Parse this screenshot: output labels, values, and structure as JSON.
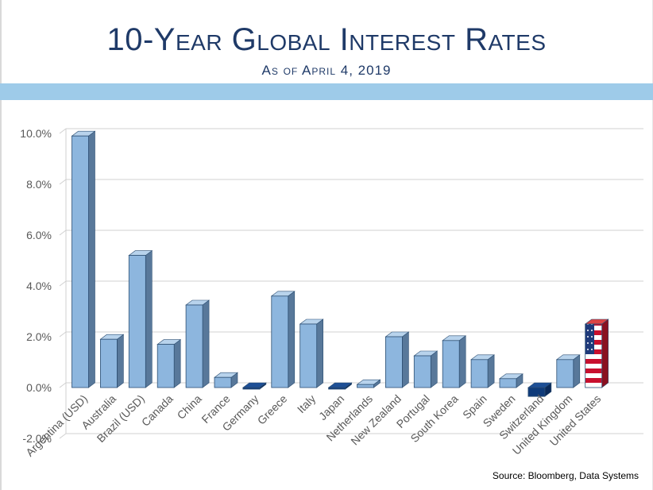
{
  "header": {
    "title": "10-Year Global Interest Rates",
    "subtitle": "As of April 4, 2019"
  },
  "source": "Source:  Bloomberg, Data Systems",
  "colors": {
    "bar_front": "#8db6de",
    "bar_side": "#58789a",
    "bar_top": "#b8d3ec",
    "bar_negative": "#0f3b7a",
    "grid": "#d0d0d0",
    "title": "#1f3a68",
    "band": "#9ecbe9"
  },
  "chart_data": {
    "type": "bar",
    "title": "10-Year Global Interest Rates",
    "subtitle": "As of April 4, 2019",
    "xlabel": "",
    "ylabel": "",
    "ylim": [
      -2,
      10
    ],
    "yticks": [
      "-2.0%",
      "0.0%",
      "2.0%",
      "4.0%",
      "6.0%",
      "8.0%",
      "10.0%"
    ],
    "grid": true,
    "categories": [
      "Argentina (USD)",
      "Australia",
      "Brazil (USD)",
      "Canada",
      "China",
      "France",
      "Germany",
      "Greece",
      "Italy",
      "Japan",
      "Netherlands",
      "New Zealand",
      "Portugal",
      "South Korea",
      "Spain",
      "Sweden",
      "Switzerland",
      "United Kingdom",
      "United States"
    ],
    "values": [
      9.9,
      1.9,
      5.2,
      1.7,
      3.25,
      0.4,
      -0.02,
      3.6,
      2.5,
      -0.04,
      0.12,
      2.0,
      1.25,
      1.85,
      1.1,
      0.35,
      -0.35,
      1.1,
      2.5
    ],
    "highlight": "United States"
  }
}
